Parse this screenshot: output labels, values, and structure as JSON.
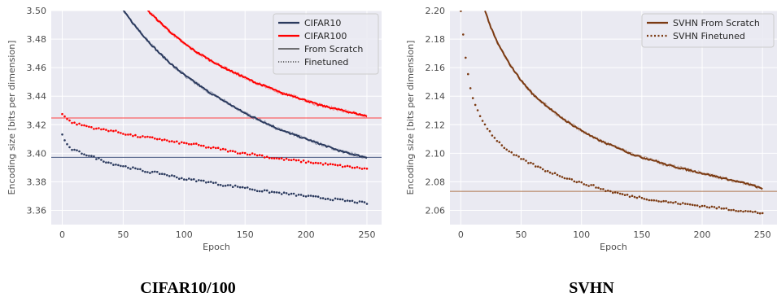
{
  "chart_data": [
    {
      "type": "line",
      "caption": "CIFAR10/100",
      "xlabel": "Epoch",
      "ylabel": "Encoding size [bits per dimension]",
      "xlim": [
        -9,
        262
      ],
      "ylim": [
        3.35,
        3.5
      ],
      "xticks": [
        0,
        50,
        100,
        150,
        200,
        250
      ],
      "yticks": [
        3.36,
        3.38,
        3.4,
        3.42,
        3.44,
        3.46,
        3.48,
        3.5
      ],
      "grid": true,
      "background": "#eaeaf2",
      "legend": {
        "placement": "top-right",
        "entries": [
          {
            "label": "CIFAR10",
            "color": "#2b3a5e",
            "style": "solid-thick"
          },
          {
            "label": "CIFAR100",
            "color": "#ff0000",
            "style": "solid-thick"
          },
          {
            "label": "From Scratch",
            "color": "#262626",
            "style": "solid"
          },
          {
            "label": "Finetuned",
            "color": "#262626",
            "style": "dotted"
          }
        ]
      },
      "hlines": [
        {
          "y": 3.4247,
          "color": "#ff4040"
        },
        {
          "y": 3.3971,
          "color": "#4a5a82"
        }
      ],
      "series": [
        {
          "name": "CIFAR10",
          "variant": "From Scratch",
          "color": "#2b3a5e",
          "style": "solid",
          "x": [
            50,
            60,
            70,
            80,
            90,
            100,
            110,
            120,
            130,
            140,
            150,
            160,
            170,
            180,
            190,
            200,
            210,
            220,
            230,
            240,
            250
          ],
          "y": [
            3.5,
            3.489,
            3.479,
            3.47,
            3.462,
            3.455,
            3.449,
            3.443,
            3.438,
            3.433,
            3.428,
            3.424,
            3.42,
            3.416,
            3.413,
            3.41,
            3.407,
            3.404,
            3.401,
            3.399,
            3.397
          ]
        },
        {
          "name": "CIFAR100",
          "variant": "From Scratch",
          "color": "#ff0000",
          "style": "solid",
          "x": [
            70,
            80,
            90,
            100,
            110,
            120,
            130,
            140,
            150,
            160,
            170,
            180,
            190,
            200,
            210,
            220,
            230,
            240,
            250
          ],
          "y": [
            3.5,
            3.492,
            3.484,
            3.477,
            3.471,
            3.466,
            3.461,
            3.457,
            3.453,
            3.449,
            3.446,
            3.442,
            3.44,
            3.437,
            3.434,
            3.432,
            3.43,
            3.428,
            3.426
          ]
        },
        {
          "name": "CIFAR100",
          "variant": "Finetuned",
          "color": "#ff0000",
          "style": "dotted",
          "x": [
            0,
            5,
            10,
            20,
            30,
            40,
            50,
            60,
            70,
            80,
            90,
            100,
            110,
            120,
            130,
            140,
            150,
            160,
            170,
            180,
            190,
            200,
            210,
            220,
            230,
            240,
            250
          ],
          "y": [
            3.428,
            3.423,
            3.421,
            3.419,
            3.417,
            3.416,
            3.414,
            3.412,
            3.411,
            3.41,
            3.408,
            3.407,
            3.406,
            3.404,
            3.403,
            3.401,
            3.4,
            3.399,
            3.397,
            3.396,
            3.395,
            3.394,
            3.393,
            3.392,
            3.391,
            3.39,
            3.389
          ]
        },
        {
          "name": "CIFAR10",
          "variant": "Finetuned",
          "color": "#2b3a5e",
          "style": "dotted",
          "x": [
            0,
            5,
            10,
            20,
            30,
            40,
            50,
            60,
            70,
            80,
            90,
            100,
            110,
            120,
            130,
            140,
            150,
            160,
            170,
            180,
            190,
            200,
            210,
            220,
            230,
            240,
            250
          ],
          "y": [
            3.413,
            3.404,
            3.402,
            3.399,
            3.396,
            3.393,
            3.391,
            3.389,
            3.387,
            3.386,
            3.384,
            3.382,
            3.381,
            3.38,
            3.378,
            3.377,
            3.376,
            3.374,
            3.373,
            3.372,
            3.371,
            3.37,
            3.369,
            3.368,
            3.367,
            3.366,
            3.365
          ]
        }
      ]
    },
    {
      "type": "line",
      "caption": "SVHN",
      "xlabel": "Epoch",
      "ylabel": "Encoding size [bits per dimension]",
      "xlim": [
        -9,
        262
      ],
      "ylim": [
        2.05,
        2.2
      ],
      "xticks": [
        0,
        50,
        100,
        150,
        200,
        250
      ],
      "yticks": [
        2.06,
        2.08,
        2.1,
        2.12,
        2.14,
        2.16,
        2.18,
        2.2
      ],
      "grid": true,
      "background": "#eaeaf2",
      "legend": {
        "placement": "top-right",
        "entries": [
          {
            "label": "SVHN From Scratch",
            "color": "#7b3a12",
            "style": "solid-thick"
          },
          {
            "label": "SVHN Finetuned",
            "color": "#7b3a12",
            "style": "dotted"
          }
        ]
      },
      "hlines": [
        {
          "y": 2.0733,
          "color": "#b07850"
        }
      ],
      "series": [
        {
          "name": "SVHN From Scratch",
          "color": "#7b3a12",
          "style": "solid",
          "x": [
            20,
            25,
            30,
            40,
            50,
            60,
            70,
            80,
            90,
            100,
            110,
            120,
            130,
            140,
            150,
            160,
            170,
            180,
            190,
            200,
            210,
            220,
            230,
            240,
            250
          ],
          "y": [
            2.2,
            2.188,
            2.178,
            2.163,
            2.151,
            2.141,
            2.134,
            2.127,
            2.121,
            2.116,
            2.111,
            2.107,
            2.104,
            2.1,
            2.097,
            2.095,
            2.092,
            2.09,
            2.088,
            2.086,
            2.084,
            2.082,
            2.08,
            2.078,
            2.075
          ]
        },
        {
          "name": "SVHN Finetuned",
          "color": "#7b3a12",
          "style": "dotted",
          "x": [
            0,
            3,
            5,
            8,
            10,
            15,
            20,
            25,
            30,
            40,
            50,
            60,
            70,
            80,
            90,
            100,
            110,
            120,
            130,
            140,
            150,
            160,
            170,
            180,
            190,
            200,
            210,
            220,
            230,
            240,
            250
          ],
          "y": [
            2.2,
            2.175,
            2.16,
            2.145,
            2.138,
            2.128,
            2.12,
            2.114,
            2.109,
            2.101,
            2.096,
            2.092,
            2.088,
            2.085,
            2.082,
            2.079,
            2.077,
            2.074,
            2.072,
            2.07,
            2.069,
            2.067,
            2.066,
            2.065,
            2.064,
            2.063,
            2.062,
            2.061,
            2.06,
            2.059,
            2.058
          ]
        }
      ]
    }
  ]
}
